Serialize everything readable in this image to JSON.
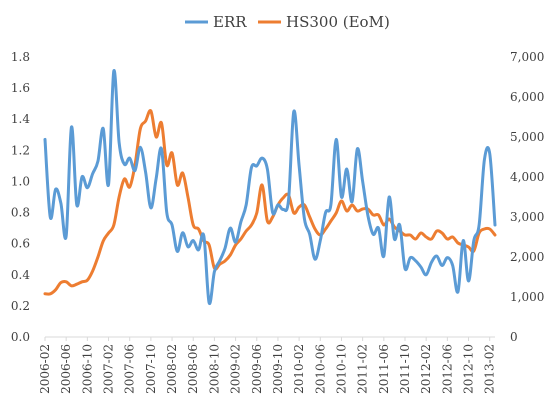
{
  "chart_data": {
    "type": "line",
    "title": "",
    "legend": [
      "ERR",
      "HS300 (EoM)"
    ],
    "legend_position": "top",
    "grid": false,
    "colors": {
      "ERR": "#5B9BD5",
      "HS300": "#ED7D31"
    },
    "x_ticks": [
      "2006-02",
      "2006-06",
      "2006-10",
      "2007-02",
      "2007-06",
      "2007-10",
      "2008-02",
      "2008-06",
      "2008-10",
      "2009-02",
      "2009-06",
      "2009-10",
      "2010-02",
      "2010-06",
      "2010-10",
      "2011-02",
      "2011-06",
      "2011-10",
      "2012-02",
      "2012-06",
      "2012-10",
      "2013-02"
    ],
    "y_left": {
      "min": 0,
      "max": 1.8,
      "ticks": [
        "0.0",
        "0.2",
        "0.4",
        "0.6",
        "0.8",
        "1.0",
        "1.2",
        "1.4",
        "1.6",
        "1.8"
      ]
    },
    "y_right": {
      "min": 0,
      "max": 7000,
      "ticks": [
        "0",
        "1,000",
        "2,000",
        "3,000",
        "4,000",
        "5,000",
        "6,000",
        "7,000"
      ]
    },
    "series": [
      {
        "name": "ERR",
        "axis": "left",
        "x": [
          "2006-02",
          "2006-03",
          "2006-04",
          "2006-05",
          "2006-06",
          "2006-07",
          "2006-08",
          "2006-09",
          "2006-10",
          "2006-11",
          "2006-12",
          "2007-01",
          "2007-02",
          "2007-03",
          "2007-04",
          "2007-05",
          "2007-06",
          "2007-07",
          "2007-08",
          "2007-09",
          "2007-10",
          "2007-11",
          "2007-12",
          "2008-01",
          "2008-02",
          "2008-03",
          "2008-04",
          "2008-05",
          "2008-06",
          "2008-07",
          "2008-08",
          "2008-09",
          "2008-10",
          "2008-11",
          "2008-12",
          "2009-01",
          "2009-02",
          "2009-03",
          "2009-04",
          "2009-05",
          "2009-06",
          "2009-07",
          "2009-08",
          "2009-09",
          "2009-10",
          "2009-11",
          "2009-12",
          "2010-01",
          "2010-02",
          "2010-03",
          "2010-04",
          "2010-05",
          "2010-06",
          "2010-07",
          "2010-08",
          "2010-09",
          "2010-10",
          "2010-11",
          "2010-12",
          "2011-01",
          "2011-02",
          "2011-03",
          "2011-04",
          "2011-05",
          "2011-06",
          "2011-07",
          "2011-08",
          "2011-09",
          "2011-10",
          "2011-11",
          "2011-12",
          "2012-01",
          "2012-02",
          "2012-03",
          "2012-04",
          "2012-05",
          "2012-06",
          "2012-07",
          "2012-08",
          "2012-09",
          "2012-10",
          "2012-11",
          "2012-12",
          "2013-01",
          "2013-02",
          "2013-03"
        ],
        "values": [
          1.27,
          0.77,
          0.95,
          0.86,
          0.65,
          1.35,
          0.85,
          1.03,
          0.96,
          1.05,
          1.13,
          1.34,
          0.98,
          1.71,
          1.25,
          1.11,
          1.15,
          1.07,
          1.22,
          1.06,
          0.83,
          1.02,
          1.21,
          0.8,
          0.72,
          0.55,
          0.67,
          0.58,
          0.62,
          0.56,
          0.65,
          0.22,
          0.42,
          0.49,
          0.57,
          0.7,
          0.61,
          0.74,
          0.85,
          1.09,
          1.1,
          1.15,
          1.08,
          0.8,
          0.85,
          0.82,
          0.88,
          1.45,
          1.1,
          0.76,
          0.66,
          0.5,
          0.62,
          0.8,
          0.85,
          1.27,
          0.9,
          1.08,
          0.87,
          1.21,
          1.0,
          0.78,
          0.66,
          0.7,
          0.52,
          0.9,
          0.63,
          0.72,
          0.44,
          0.51,
          0.49,
          0.45,
          0.4,
          0.48,
          0.52,
          0.46,
          0.51,
          0.46,
          0.29,
          0.62,
          0.36,
          0.62,
          0.72,
          1.14,
          1.18,
          0.72
        ]
      },
      {
        "name": "HS300 (EoM)",
        "axis": "right",
        "x": [
          "2006-02",
          "2006-03",
          "2006-04",
          "2006-05",
          "2006-06",
          "2006-07",
          "2006-08",
          "2006-09",
          "2006-10",
          "2006-11",
          "2006-12",
          "2007-01",
          "2007-02",
          "2007-03",
          "2007-04",
          "2007-05",
          "2007-06",
          "2007-07",
          "2007-08",
          "2007-09",
          "2007-10",
          "2007-11",
          "2007-12",
          "2008-01",
          "2008-02",
          "2008-03",
          "2008-04",
          "2008-05",
          "2008-06",
          "2008-07",
          "2008-08",
          "2008-09",
          "2008-10",
          "2008-11",
          "2008-12",
          "2009-01",
          "2009-02",
          "2009-03",
          "2009-04",
          "2009-05",
          "2009-06",
          "2009-07",
          "2009-08",
          "2009-09",
          "2009-10",
          "2009-11",
          "2009-12",
          "2010-01",
          "2010-02",
          "2010-03",
          "2010-04",
          "2010-05",
          "2010-06",
          "2010-07",
          "2010-08",
          "2010-09",
          "2010-10",
          "2010-11",
          "2010-12",
          "2011-01",
          "2011-02",
          "2011-03",
          "2011-04",
          "2011-05",
          "2011-06",
          "2011-07",
          "2011-08",
          "2011-09",
          "2011-10",
          "2011-11",
          "2011-12",
          "2012-01",
          "2012-02",
          "2012-03",
          "2012-04",
          "2012-05",
          "2012-06",
          "2012-07",
          "2012-08",
          "2012-09",
          "2012-10",
          "2012-11",
          "2012-12",
          "2013-01",
          "2013-02",
          "2013-03"
        ],
        "values": [
          1080,
          1080,
          1180,
          1360,
          1380,
          1280,
          1320,
          1380,
          1420,
          1650,
          2000,
          2400,
          2600,
          2800,
          3500,
          3950,
          3750,
          4300,
          5200,
          5400,
          5650,
          5000,
          5350,
          4300,
          4600,
          3800,
          4100,
          3500,
          2800,
          2700,
          2400,
          2300,
          1720,
          1820,
          1900,
          2050,
          2300,
          2450,
          2650,
          2800,
          3100,
          3800,
          2900,
          3000,
          3300,
          3480,
          3550,
          3100,
          3250,
          3300,
          3000,
          2700,
          2550,
          2700,
          2900,
          3100,
          3400,
          3150,
          3300,
          3150,
          3200,
          3200,
          3050,
          3050,
          2800,
          2950,
          2750,
          2650,
          2550,
          2550,
          2450,
          2600,
          2500,
          2450,
          2650,
          2600,
          2450,
          2500,
          2350,
          2300,
          2250,
          2150,
          2600,
          2700,
          2700,
          2550
        ]
      }
    ]
  }
}
